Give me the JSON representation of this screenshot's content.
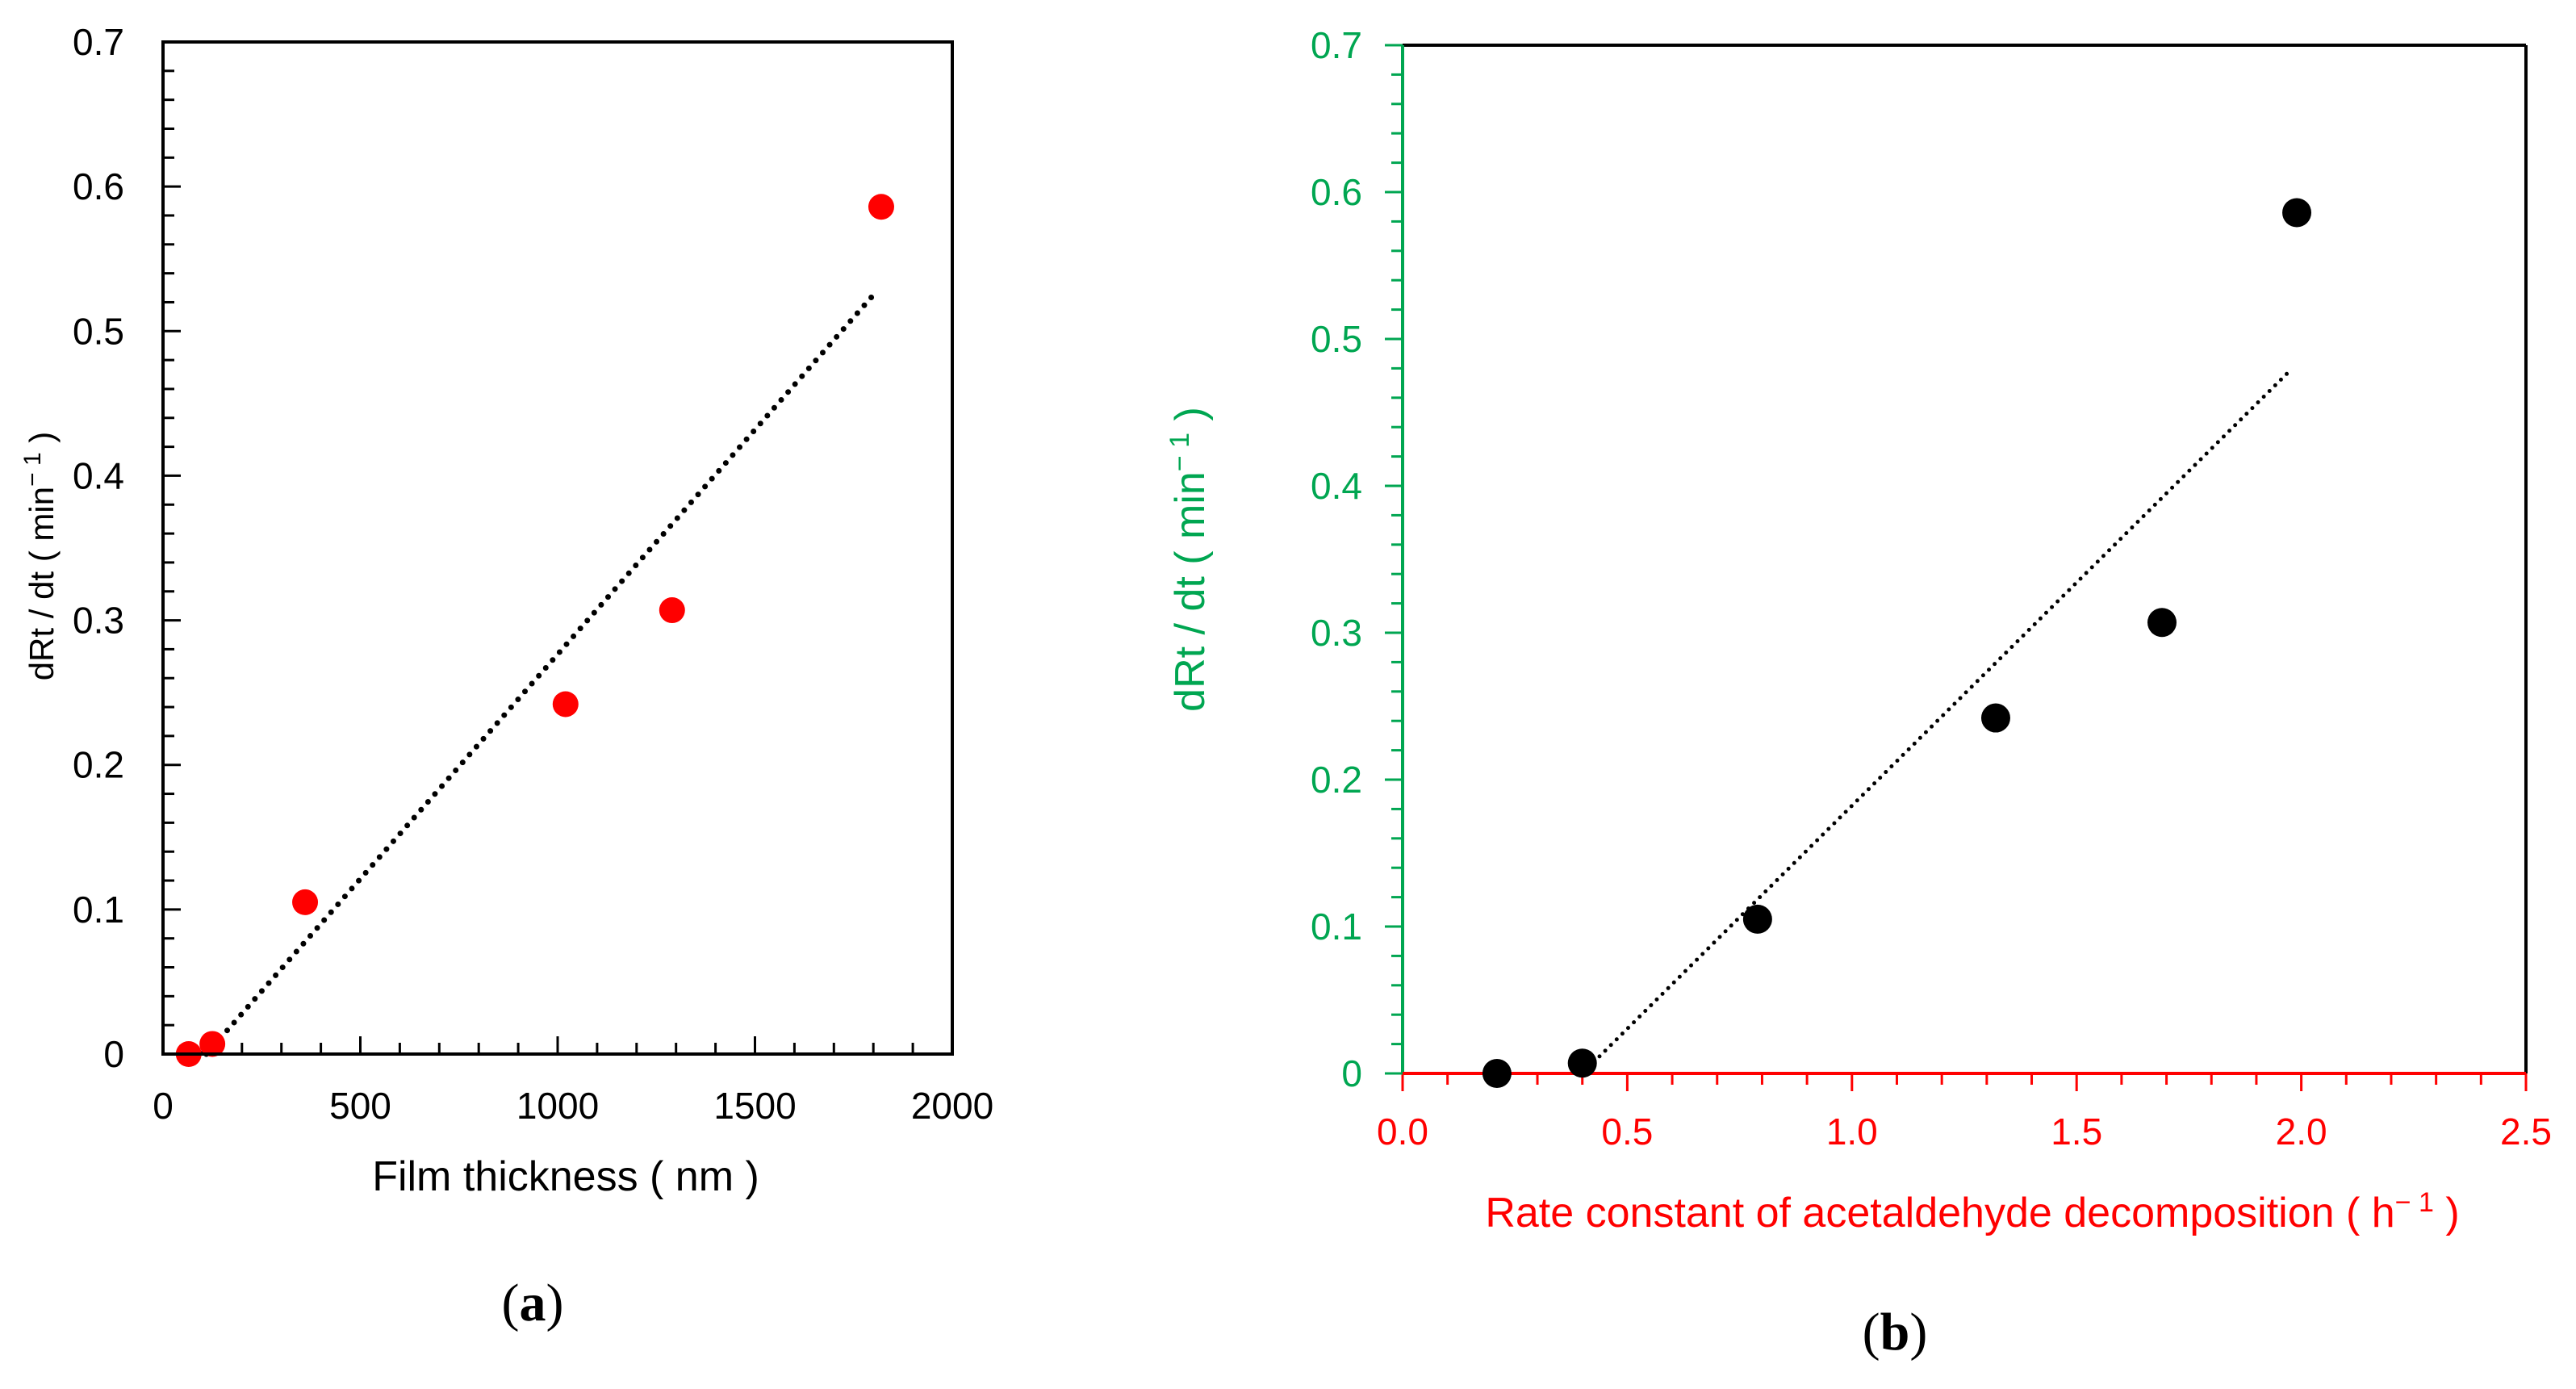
{
  "colors": {
    "black": "#000000",
    "red": "#ff0000",
    "green": "#00a651",
    "point_red": "#ff0000",
    "point_black": "#000000"
  },
  "chart_data": [
    {
      "type": "scatter",
      "panel": "a",
      "panel_label": {
        "open": "(",
        "letter": "a",
        "close": ")"
      },
      "xlabel": "Film thickness ( nm )",
      "ylabel_parts": {
        "pre": "dRt / dt ( min",
        "sup": "− 1",
        "post": " )"
      },
      "xlim": [
        0,
        2000
      ],
      "ylim": [
        0,
        0.7
      ],
      "xticks": [
        0,
        500,
        1000,
        1500,
        2000
      ],
      "yticks": [
        0,
        0.1,
        0.2,
        0.3,
        0.4,
        0.5,
        0.6,
        0.7
      ],
      "xtick_labels": [
        "0",
        "500",
        "1000",
        "1500",
        "2000"
      ],
      "ytick_labels": [
        "0",
        "0.1",
        "0.2",
        "0.3",
        "0.4",
        "0.5",
        "0.6",
        "0.7"
      ],
      "points": {
        "x": [
          65,
          125,
          360,
          1020,
          1290,
          1820
        ],
        "y": [
          0,
          0.007,
          0.105,
          0.242,
          0.307,
          0.586
        ]
      },
      "trendline": {
        "x": [
          110,
          1800
        ],
        "y": [
          0.0,
          0.525
        ],
        "style": "dotted"
      },
      "axis_color": "#000000",
      "point_color": "#ff0000"
    },
    {
      "type": "scatter",
      "panel": "b",
      "panel_label": {
        "open": "(",
        "letter": "b",
        "close": ")"
      },
      "xlabel_parts": {
        "pre": "Rate constant of acetaldehyde decomposition ( h",
        "sup": "− 1",
        "post": " )"
      },
      "ylabel_parts": {
        "pre": "dRt / dt ( min",
        "sup": "− 1",
        "post": " )"
      },
      "xlim": [
        0,
        2.5
      ],
      "ylim": [
        0,
        0.7
      ],
      "xticks": [
        0,
        0.5,
        1.0,
        1.5,
        2.0,
        2.5
      ],
      "yticks": [
        0,
        0.1,
        0.2,
        0.3,
        0.4,
        0.5,
        0.6,
        0.7
      ],
      "xtick_labels": [
        "0.0",
        "0.5",
        "1.0",
        "1.5",
        "2.0",
        "2.5"
      ],
      "ytick_labels": [
        "0",
        "0.1",
        "0.2",
        "0.3",
        "0.4",
        "0.5",
        "0.6",
        "0.7"
      ],
      "points": {
        "x": [
          0.21,
          0.4,
          0.79,
          1.32,
          1.69,
          1.99
        ],
        "y": [
          0,
          0.007,
          0.105,
          0.242,
          0.307,
          0.586
        ]
      },
      "trendline": {
        "x": [
          0.4,
          1.98
        ],
        "y": [
          0.0,
          0.48
        ],
        "style": "dotted"
      },
      "x_axis_color": "#ff0000",
      "y_axis_color": "#00a651",
      "point_color": "#000000"
    }
  ]
}
